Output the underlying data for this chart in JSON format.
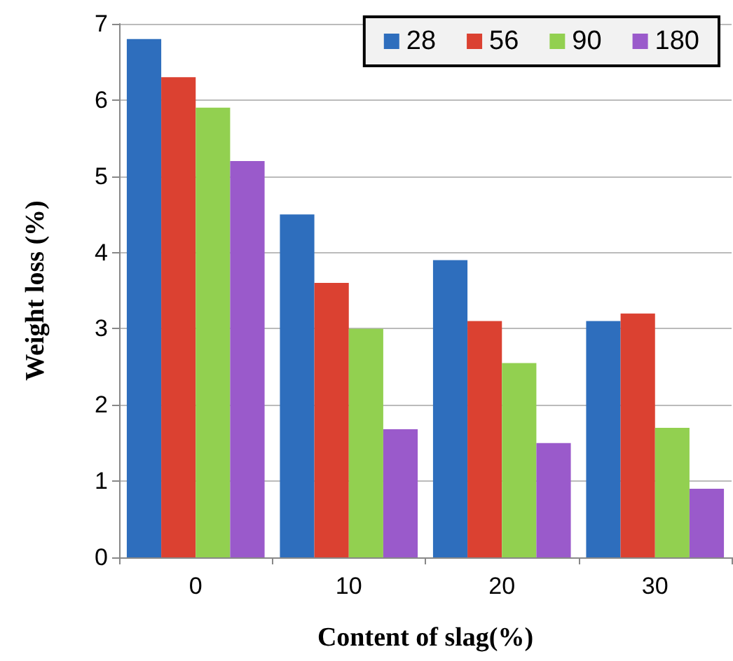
{
  "chart_data": {
    "type": "bar",
    "xlabel": "Content of slag(%)",
    "ylabel": "Weight loss (%)",
    "categories": [
      "0",
      "10",
      "20",
      "30"
    ],
    "series": [
      {
        "name": "28",
        "color": "#2e6ebd",
        "values": [
          6.8,
          4.5,
          3.9,
          3.1
        ]
      },
      {
        "name": "56",
        "color": "#db4131",
        "values": [
          6.3,
          3.6,
          3.1,
          3.2
        ]
      },
      {
        "name": "90",
        "color": "#92d050",
        "values": [
          5.9,
          3.0,
          2.55,
          1.7
        ]
      },
      {
        "name": "180",
        "color": "#9a5acb",
        "values": [
          5.2,
          1.68,
          1.5,
          0.9
        ]
      }
    ],
    "ylim": [
      0,
      7
    ],
    "yticks": [
      0,
      1,
      2,
      3,
      4,
      5,
      6,
      7
    ],
    "grid": "y",
    "legend": "top right"
  }
}
